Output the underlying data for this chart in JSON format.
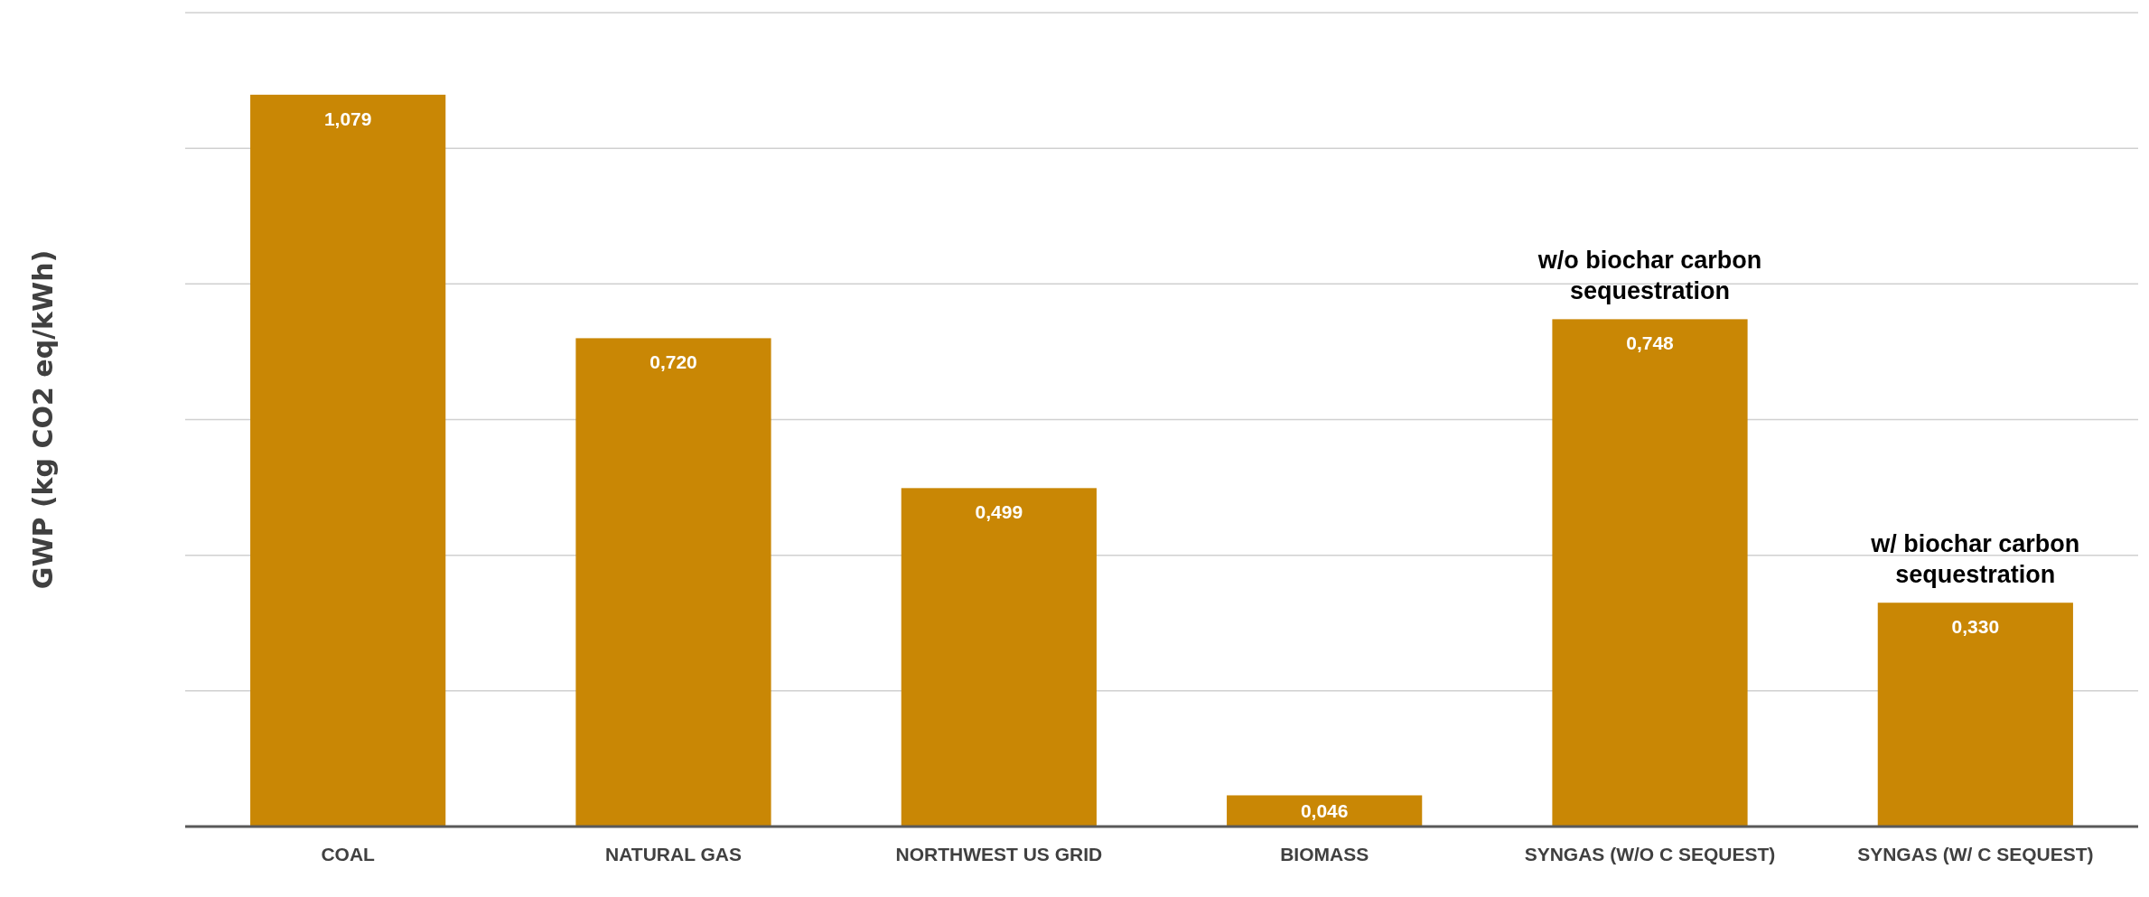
{
  "chart_data": {
    "type": "bar",
    "ylabel": "GWP (kg CO2 eq/kWh)",
    "categories": [
      "COAL",
      "NATURAL GAS",
      "NORTHWEST US GRID",
      "BIOMASS",
      "SYNGAS (W/O C SEQUEST)",
      "SYNGAS (W/  C SEQUEST)"
    ],
    "values": [
      1.079,
      0.72,
      0.499,
      0.046,
      0.748,
      0.33
    ],
    "value_labels": [
      "1,079",
      "0,720",
      "0,499",
      "0,046",
      "0,748",
      "0,330"
    ],
    "color": "#c98705",
    "ylim": [
      0,
      1.2
    ],
    "yticks": [
      {
        "value": 0,
        "label": null
      },
      {
        "value": 0.2,
        "label": null
      },
      {
        "value": 0.4,
        "label": null
      },
      {
        "value": 0.6,
        "label": null
      },
      {
        "value": 0.8,
        "label": null
      },
      {
        "value": 1,
        "label": null
      },
      {
        "value": 1.2,
        "label": null
      }
    ],
    "grid": "y",
    "annotations": [
      {
        "text": "w/o biochar carbon sequestration",
        "x": "SYNGAS (W/O C SEQUEST)",
        "y": 0.748
      },
      {
        "text": "w/ biochar carbon sequestration",
        "x": "SYNGAS (W/  C SEQUEST)",
        "y": 0.33
      }
    ]
  }
}
